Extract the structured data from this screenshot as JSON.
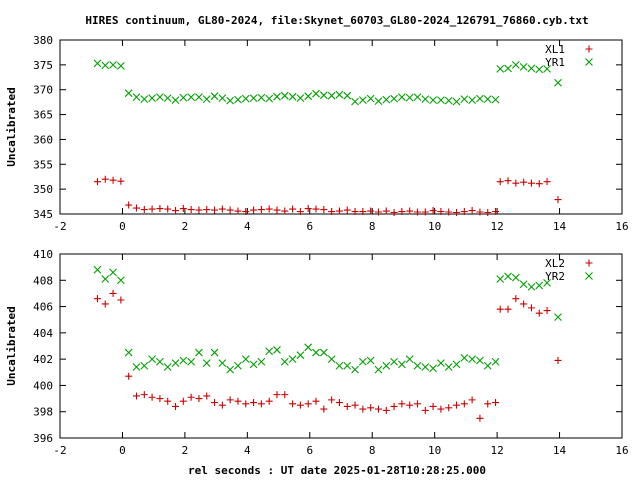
{
  "chart_data": {
    "title": "HIRES continuum, GL80-2024, file:Skynet_60703_GL80-2024_126791_76860.cyb.txt",
    "xlabel": "rel seconds : UT date 2025-01-28T10:28:25.000",
    "colors": {
      "red": "#cc0000",
      "green": "#00a000"
    },
    "panels": [
      {
        "type": "scatter",
        "ylabel": "Uncalibrated",
        "xlim": [
          -2,
          16
        ],
        "ylim": [
          345,
          380
        ],
        "xticks": [
          -2,
          0,
          2,
          4,
          6,
          8,
          10,
          12,
          14,
          16
        ],
        "yticks": [
          345,
          350,
          355,
          360,
          365,
          370,
          375,
          380
        ],
        "legend": "top-right",
        "series": [
          {
            "name": "XL1",
            "marker": "plus",
            "color": "#cc0000",
            "x": [
              -0.8,
              -0.55,
              -0.3,
              -0.05,
              0.2,
              0.45,
              0.7,
              0.95,
              1.2,
              1.45,
              1.7,
              1.95,
              2.2,
              2.45,
              2.7,
              2.95,
              3.2,
              3.45,
              3.7,
              3.95,
              4.2,
              4.45,
              4.7,
              4.95,
              5.2,
              5.45,
              5.7,
              5.95,
              6.2,
              6.45,
              6.7,
              6.95,
              7.2,
              7.45,
              7.7,
              7.95,
              8.2,
              8.45,
              8.7,
              8.95,
              9.2,
              9.45,
              9.7,
              9.95,
              10.2,
              10.45,
              10.7,
              10.95,
              11.2,
              11.45,
              11.7,
              11.95,
              12.1,
              12.35,
              12.6,
              12.85,
              13.1,
              13.35,
              13.6,
              13.95
            ],
            "y": [
              351.5,
              352.0,
              351.8,
              351.6,
              346.8,
              346.2,
              345.9,
              346.0,
              346.1,
              346.0,
              345.7,
              346.1,
              345.9,
              345.8,
              345.9,
              345.8,
              346.0,
              345.8,
              345.6,
              345.5,
              345.8,
              345.9,
              346.0,
              345.8,
              345.6,
              346.0,
              345.5,
              346.1,
              346.0,
              345.9,
              345.5,
              345.6,
              345.8,
              345.5,
              345.5,
              345.6,
              345.4,
              345.6,
              345.3,
              345.5,
              345.6,
              345.4,
              345.4,
              345.7,
              345.5,
              345.4,
              345.3,
              345.5,
              345.7,
              345.4,
              345.3,
              345.5,
              351.5,
              351.7,
              351.2,
              351.4,
              351.2,
              351.1,
              351.5,
              347.9
            ]
          },
          {
            "name": "YR1",
            "marker": "cross",
            "color": "#00a000",
            "x": [
              -0.8,
              -0.55,
              -0.3,
              -0.05,
              0.2,
              0.45,
              0.7,
              0.95,
              1.2,
              1.45,
              1.7,
              1.95,
              2.2,
              2.45,
              2.7,
              2.95,
              3.2,
              3.45,
              3.7,
              3.95,
              4.2,
              4.45,
              4.7,
              4.95,
              5.2,
              5.45,
              5.7,
              5.95,
              6.2,
              6.45,
              6.7,
              6.95,
              7.2,
              7.45,
              7.7,
              7.95,
              8.2,
              8.45,
              8.7,
              8.95,
              9.2,
              9.45,
              9.7,
              9.95,
              10.2,
              10.45,
              10.7,
              10.95,
              11.2,
              11.45,
              11.7,
              11.95,
              12.1,
              12.35,
              12.6,
              12.85,
              13.1,
              13.35,
              13.6,
              13.95
            ],
            "y": [
              375.3,
              374.9,
              375.0,
              374.8,
              369.3,
              368.5,
              368.1,
              368.3,
              368.5,
              368.3,
              367.9,
              368.4,
              368.5,
              368.5,
              368.1,
              368.7,
              368.3,
              367.8,
              368.0,
              368.2,
              368.3,
              368.4,
              368.2,
              368.6,
              368.8,
              368.6,
              368.3,
              368.7,
              369.2,
              368.9,
              368.8,
              369.0,
              368.8,
              367.6,
              367.9,
              368.2,
              367.7,
              368.0,
              368.2,
              368.5,
              368.4,
              368.5,
              368.1,
              367.9,
              367.9,
              367.8,
              367.6,
              368.1,
              367.9,
              368.2,
              368.1,
              368.0,
              374.2,
              374.3,
              375.0,
              374.6,
              374.3,
              374.1,
              374.2,
              371.4
            ]
          }
        ]
      },
      {
        "type": "scatter",
        "ylabel": "Uncalibrated",
        "xlim": [
          -2,
          16
        ],
        "ylim": [
          396,
          410
        ],
        "xticks": [
          -2,
          0,
          2,
          4,
          6,
          8,
          10,
          12,
          14,
          16
        ],
        "yticks": [
          396,
          398,
          400,
          402,
          404,
          406,
          408,
          410
        ],
        "legend": "top-right",
        "series": [
          {
            "name": "XL2",
            "marker": "plus",
            "color": "#cc0000",
            "x": [
              -0.8,
              -0.55,
              -0.3,
              -0.05,
              0.2,
              0.45,
              0.7,
              0.95,
              1.2,
              1.45,
              1.7,
              1.95,
              2.2,
              2.45,
              2.7,
              2.95,
              3.2,
              3.45,
              3.7,
              3.95,
              4.2,
              4.45,
              4.7,
              4.95,
              5.2,
              5.45,
              5.7,
              5.95,
              6.2,
              6.45,
              6.7,
              6.95,
              7.2,
              7.45,
              7.7,
              7.95,
              8.2,
              8.45,
              8.7,
              8.95,
              9.2,
              9.45,
              9.7,
              9.95,
              10.2,
              10.45,
              10.7,
              10.95,
              11.2,
              11.45,
              11.7,
              11.95,
              12.1,
              12.35,
              12.6,
              12.85,
              13.1,
              13.35,
              13.6,
              13.95
            ],
            "y": [
              406.6,
              406.2,
              407.0,
              406.5,
              400.7,
              399.2,
              399.3,
              399.1,
              399.0,
              398.8,
              398.4,
              398.8,
              399.1,
              399.0,
              399.2,
              398.7,
              398.5,
              398.9,
              398.8,
              398.6,
              398.7,
              398.6,
              398.8,
              399.3,
              399.3,
              398.6,
              398.5,
              398.6,
              398.8,
              398.2,
              398.9,
              398.7,
              398.4,
              398.5,
              398.2,
              398.3,
              398.2,
              398.1,
              398.4,
              398.6,
              398.5,
              398.6,
              398.1,
              398.4,
              398.2,
              398.3,
              398.5,
              398.6,
              398.9,
              397.5,
              398.6,
              398.7,
              405.8,
              405.8,
              406.6,
              406.2,
              405.9,
              405.5,
              405.7,
              401.9
            ]
          },
          {
            "name": "YR2",
            "marker": "cross",
            "color": "#00a000",
            "x": [
              -0.8,
              -0.55,
              -0.3,
              -0.05,
              0.2,
              0.45,
              0.7,
              0.95,
              1.2,
              1.45,
              1.7,
              1.95,
              2.2,
              2.45,
              2.7,
              2.95,
              3.2,
              3.45,
              3.7,
              3.95,
              4.2,
              4.45,
              4.7,
              4.95,
              5.2,
              5.45,
              5.7,
              5.95,
              6.2,
              6.45,
              6.7,
              6.95,
              7.2,
              7.45,
              7.7,
              7.95,
              8.2,
              8.45,
              8.7,
              8.95,
              9.2,
              9.45,
              9.7,
              9.95,
              10.2,
              10.45,
              10.7,
              10.95,
              11.2,
              11.45,
              11.7,
              11.95,
              12.1,
              12.35,
              12.6,
              12.85,
              13.1,
              13.35,
              13.6,
              13.95
            ],
            "y": [
              408.8,
              408.1,
              408.6,
              408.0,
              402.5,
              401.4,
              401.5,
              402.0,
              401.8,
              401.4,
              401.7,
              401.9,
              401.8,
              402.5,
              401.7,
              402.5,
              401.7,
              401.2,
              401.5,
              402.0,
              401.6,
              401.8,
              402.6,
              402.7,
              401.8,
              402.0,
              402.3,
              402.9,
              402.5,
              402.5,
              402.0,
              401.5,
              401.5,
              401.2,
              401.8,
              401.9,
              401.2,
              401.5,
              401.8,
              401.6,
              402.0,
              401.5,
              401.4,
              401.3,
              401.7,
              401.4,
              401.6,
              402.1,
              402.0,
              401.9,
              401.5,
              401.8,
              408.1,
              408.3,
              408.2,
              407.7,
              407.5,
              407.6,
              407.8,
              405.2
            ]
          }
        ]
      }
    ]
  }
}
